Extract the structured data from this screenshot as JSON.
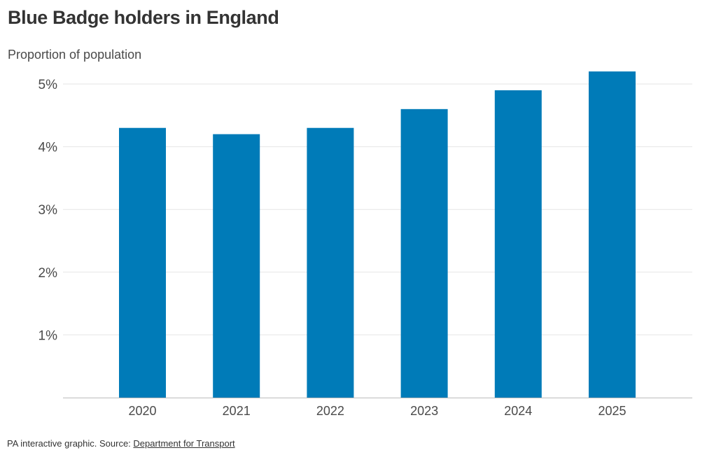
{
  "chart_data": {
    "type": "bar",
    "title": "Blue Badge holders in England",
    "subtitle": "Proportion of population",
    "categories": [
      "2020",
      "2021",
      "2022",
      "2023",
      "2024",
      "2025"
    ],
    "series": [
      {
        "values": [
          4.3,
          4.2,
          4.3,
          4.6,
          4.9,
          5.2
        ]
      }
    ],
    "yticks": [
      1,
      2,
      3,
      4,
      5
    ],
    "ytick_labels": [
      "1%",
      "2%",
      "3%",
      "4%",
      "5%"
    ],
    "ylim": [
      0,
      5.5
    ],
    "grid": true,
    "bar_color": "#007bb8",
    "gridline_color": "#e6e6e6",
    "axis_color": "#bbbbbb"
  },
  "footer": {
    "prefix": "PA interactive graphic. Source: ",
    "source_link": "Department for Transport"
  }
}
